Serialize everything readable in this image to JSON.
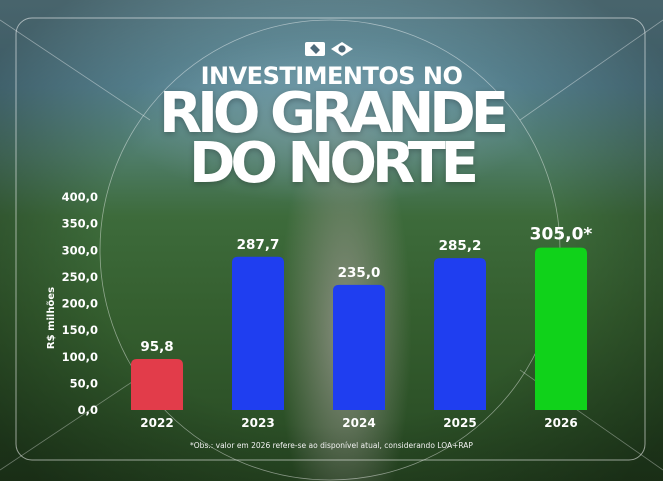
{
  "header": {
    "title_line1": "INVESTIMENTOS NO",
    "title_line2": "RIO GRANDE",
    "title_line3": "DO NORTE",
    "logo_icons": [
      "governo-logo-box-icon",
      "governo-logo-diamond-icon"
    ]
  },
  "colors": {
    "bar_2022": "#e23c4a",
    "bar_default": "#1f3ef0",
    "bar_2026": "#10d21a",
    "text": "#ffffff"
  },
  "chart_data": {
    "type": "bar",
    "title": "",
    "xlabel": "",
    "ylabel": "R$ milhões",
    "ylim": [
      0,
      400
    ],
    "yticks": [
      "400,0",
      "350,0",
      "300,0",
      "250,0",
      "200,0",
      "150,0",
      "100,0",
      "50,0",
      "0,0"
    ],
    "categories": [
      "2022",
      "2023",
      "2024",
      "2025",
      "2026"
    ],
    "values": [
      95.8,
      287.7,
      235.0,
      285.2,
      305.0
    ],
    "value_labels": [
      "95,8",
      "287,7",
      "235,0",
      "285,2",
      "305,0*"
    ],
    "bar_colors": [
      "#e23c4a",
      "#1f3ef0",
      "#1f3ef0",
      "#1f3ef0",
      "#10d21a"
    ],
    "grid": false,
    "legend": "none"
  },
  "footnote": "*Obs.: valor em 2026 refere-se ao disponível atual, considerando LOA+RAP"
}
